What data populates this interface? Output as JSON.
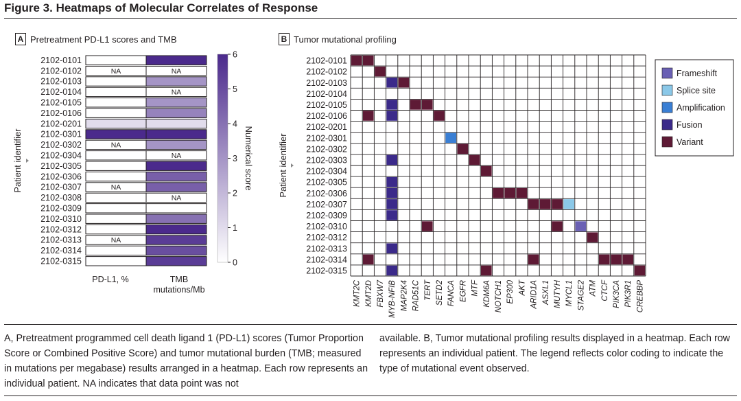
{
  "figure_title": "Figure 3. Heatmaps of Molecular Correlates of Response",
  "caption_left": "A, Pretreatment programmed cell death ligand 1 (PD-L1) scores (Tumor Proportion Score or Combined Positive Score) and tumor mutational burden (TMB; measured in mutations per megabase) results arranged in a heatmap. Each row represents an individual patient. NA indicates that data point was not",
  "caption_right": "available. B, Tumor mutational profiling results displayed in a heatmap. Each row represents an individual patient. The legend reflects color coding to indicate the type of mutational event observed.",
  "colors": {
    "grid": "#231f20",
    "scale_low": "#ffffff",
    "scale_high": "#4b2a8c",
    "frameshift": "#6a60b4",
    "splice_site": "#8bc8e8",
    "amplification": "#3a7fd4",
    "fusion": "#3b2a8a",
    "variant": "#5e1a35"
  },
  "chart_data": [
    {
      "type": "heatmap",
      "panel": "A",
      "title": "Pretreatment PD-L1 scores and TMB",
      "ylabel": "Patient identifier",
      "colorbar_label": "Numerical score",
      "colorbar_range": [
        0,
        6
      ],
      "colorbar_ticks": [
        "0",
        "1",
        "2",
        "3",
        "4",
        "5",
        "6"
      ],
      "na_label": "NA",
      "columns": [
        "PD-L1, %",
        "TMB mutations/Mb"
      ],
      "rows": [
        "2102-0101",
        "2102-0102",
        "2102-0103",
        "2102-0104",
        "2102-0105",
        "2102-0106",
        "2102-0201",
        "2102-0301",
        "2102-0302",
        "2102-0304",
        "2102-0305",
        "2102-0306",
        "2102-0307",
        "2102-0308",
        "2102-0309",
        "2102-0310",
        "2102-0312",
        "2102-0313",
        "2102-0314",
        "2102-0315"
      ],
      "pdl1": [
        0,
        null,
        0,
        0,
        0,
        0,
        1,
        6,
        null,
        0,
        0,
        0,
        null,
        0,
        0,
        0,
        0,
        null,
        0,
        0
      ],
      "tmb": [
        6,
        null,
        3,
        null,
        3,
        3.5,
        1,
        6,
        3,
        null,
        6,
        4.5,
        4.5,
        null,
        0,
        4,
        6,
        5.5,
        5,
        5.5
      ]
    },
    {
      "type": "heatmap",
      "panel": "B",
      "title": "Tumor mutational profiling",
      "ylabel": "Patient identifier",
      "genes": [
        "KMT2C",
        "KMT2D",
        "FBXW7",
        "MYB-NFIB",
        "MAP2K4",
        "RAD51C",
        "TERT",
        "SETD2",
        "FANCA",
        "EGFR",
        "MTF",
        "KDM6A",
        "NOTCH1",
        "EP300",
        "AKT",
        "ARID1A",
        "ASXL1",
        "MUTYH",
        "MYCL1",
        "STAGE2",
        "ATM",
        "CTCF",
        "PIK3CA",
        "PIK3R1",
        "CREBBP"
      ],
      "rows": [
        "2102-0101",
        "2102-0102",
        "2102-0103",
        "2102-0104",
        "2102-0105",
        "2102-0106",
        "2102-0201",
        "2102-0301",
        "2102-0302",
        "2102-0303",
        "2102-0304",
        "2102-0305",
        "2102-0306",
        "2102-0307",
        "2102-0309",
        "2102-0310",
        "2102-0312",
        "2102-0313",
        "2102-0314",
        "2102-0315"
      ],
      "legend": [
        {
          "key": "frameshift",
          "label": "Frameshift"
        },
        {
          "key": "splice_site",
          "label": "Splice site"
        },
        {
          "key": "amplification",
          "label": "Amplification"
        },
        {
          "key": "fusion",
          "label": "Fusion"
        },
        {
          "key": "variant",
          "label": "Variant"
        }
      ],
      "events": [
        {
          "patient": "2102-0101",
          "gene": "KMT2C",
          "type": "variant"
        },
        {
          "patient": "2102-0101",
          "gene": "KMT2D",
          "type": "variant"
        },
        {
          "patient": "2102-0102",
          "gene": "FBXW7",
          "type": "variant"
        },
        {
          "patient": "2102-0103",
          "gene": "MYB-NFIB",
          "type": "fusion"
        },
        {
          "patient": "2102-0103",
          "gene": "MAP2K4",
          "type": "variant"
        },
        {
          "patient": "2102-0105",
          "gene": "MYB-NFIB",
          "type": "fusion"
        },
        {
          "patient": "2102-0105",
          "gene": "RAD51C",
          "type": "variant"
        },
        {
          "patient": "2102-0105",
          "gene": "TERT",
          "type": "variant"
        },
        {
          "patient": "2102-0106",
          "gene": "KMT2D",
          "type": "variant"
        },
        {
          "patient": "2102-0106",
          "gene": "MYB-NFIB",
          "type": "fusion"
        },
        {
          "patient": "2102-0106",
          "gene": "SETD2",
          "type": "variant"
        },
        {
          "patient": "2102-0301",
          "gene": "FANCA",
          "type": "amplification"
        },
        {
          "patient": "2102-0302",
          "gene": "EGFR",
          "type": "variant"
        },
        {
          "patient": "2102-0303",
          "gene": "MYB-NFIB",
          "type": "fusion"
        },
        {
          "patient": "2102-0303",
          "gene": "MTF",
          "type": "variant"
        },
        {
          "patient": "2102-0304",
          "gene": "KDM6A",
          "type": "variant"
        },
        {
          "patient": "2102-0305",
          "gene": "MYB-NFIB",
          "type": "fusion"
        },
        {
          "patient": "2102-0306",
          "gene": "MYB-NFIB",
          "type": "fusion"
        },
        {
          "patient": "2102-0306",
          "gene": "NOTCH1",
          "type": "variant"
        },
        {
          "patient": "2102-0306",
          "gene": "EP300",
          "type": "variant"
        },
        {
          "patient": "2102-0306",
          "gene": "AKT",
          "type": "variant"
        },
        {
          "patient": "2102-0307",
          "gene": "MYB-NFIB",
          "type": "fusion"
        },
        {
          "patient": "2102-0307",
          "gene": "ARID1A",
          "type": "variant"
        },
        {
          "patient": "2102-0307",
          "gene": "ASXL1",
          "type": "variant"
        },
        {
          "patient": "2102-0307",
          "gene": "MUTYH",
          "type": "variant"
        },
        {
          "patient": "2102-0307",
          "gene": "MYCL1",
          "type": "splice_site"
        },
        {
          "patient": "2102-0309",
          "gene": "MYB-NFIB",
          "type": "fusion"
        },
        {
          "patient": "2102-0310",
          "gene": "TERT",
          "type": "variant"
        },
        {
          "patient": "2102-0310",
          "gene": "MUTYH",
          "type": "variant"
        },
        {
          "patient": "2102-0310",
          "gene": "STAGE2",
          "type": "frameshift"
        },
        {
          "patient": "2102-0312",
          "gene": "ATM",
          "type": "variant"
        },
        {
          "patient": "2102-0313",
          "gene": "MYB-NFIB",
          "type": "fusion"
        },
        {
          "patient": "2102-0314",
          "gene": "KMT2D",
          "type": "variant"
        },
        {
          "patient": "2102-0314",
          "gene": "ARID1A",
          "type": "variant"
        },
        {
          "patient": "2102-0314",
          "gene": "CTCF",
          "type": "variant"
        },
        {
          "patient": "2102-0314",
          "gene": "PIK3CA",
          "type": "variant"
        },
        {
          "patient": "2102-0314",
          "gene": "PIK3R1",
          "type": "variant"
        },
        {
          "patient": "2102-0315",
          "gene": "MYB-NFIB",
          "type": "fusion"
        },
        {
          "patient": "2102-0315",
          "gene": "KDM6A",
          "type": "variant"
        },
        {
          "patient": "2102-0315",
          "gene": "CREBBP",
          "type": "variant"
        }
      ]
    }
  ]
}
